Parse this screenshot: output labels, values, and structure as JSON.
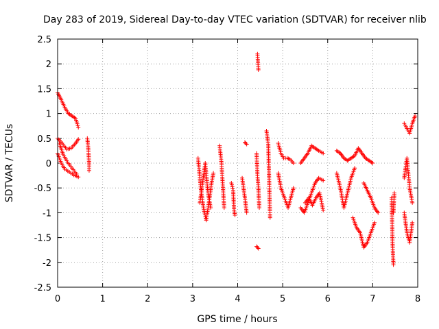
{
  "chart_data": {
    "type": "scatter",
    "title": "Day 283 of 2019, Sidereal Day-to-day VTEC variation (SDTVAR) for receiver nlib",
    "xlabel": "GPS time / hours",
    "ylabel": "SDTVAR / TECUs",
    "xlim": [
      0,
      8
    ],
    "ylim": [
      -2.5,
      2.5
    ],
    "grid": true,
    "marker": "plus",
    "marker_color": "#ff0000",
    "x_ticks": [
      0,
      1,
      2,
      3,
      4,
      5,
      6,
      7,
      8
    ],
    "x_tick_labels": [
      "0",
      "1",
      "2",
      "3",
      "4",
      "5",
      "6",
      "7",
      "8"
    ],
    "y_ticks": [
      -2.5,
      -2,
      -1.5,
      -1,
      -0.5,
      0,
      0.5,
      1,
      1.5,
      2,
      2.5
    ],
    "y_tick_labels": [
      "-2.5",
      "-2",
      "-1.5",
      "-1",
      "-0.5",
      "0",
      "0.5",
      "1",
      "1.5",
      "2",
      "2.5"
    ],
    "series": [
      {
        "name": "SDTVAR",
        "segments": [
          {
            "x": [
              0.0,
              0.08,
              0.16,
              0.24,
              0.32,
              0.4,
              0.46
            ],
            "y": [
              1.42,
              1.28,
              1.12,
              1.0,
              0.95,
              0.9,
              0.72
            ]
          },
          {
            "x": [
              0.0,
              0.1,
              0.2,
              0.3,
              0.4,
              0.46
            ],
            "y": [
              0.5,
              0.4,
              0.28,
              0.3,
              0.4,
              0.48
            ]
          },
          {
            "x": [
              0.0,
              0.08,
              0.16,
              0.26,
              0.36,
              0.46
            ],
            "y": [
              0.2,
              0.0,
              -0.12,
              -0.18,
              -0.24,
              -0.28
            ]
          },
          {
            "x": [
              0.04,
              0.12,
              0.22,
              0.32,
              0.42
            ],
            "y": [
              0.4,
              0.18,
              0.02,
              -0.1,
              -0.22
            ]
          },
          {
            "x": [
              0.66,
              0.68,
              0.7,
              0.7
            ],
            "y": [
              0.5,
              0.3,
              0.0,
              -0.15
            ]
          },
          {
            "x": [
              3.12,
              3.18,
              3.24,
              3.3,
              3.36,
              3.42,
              3.46
            ],
            "y": [
              0.1,
              -0.5,
              -0.9,
              -1.15,
              -0.8,
              -0.4,
              -0.2
            ]
          },
          {
            "x": [
              3.16,
              3.22,
              3.28,
              3.34,
              3.4
            ],
            "y": [
              -0.8,
              -0.4,
              0.0,
              -0.6,
              -0.9
            ]
          },
          {
            "x": [
              3.6,
              3.64,
              3.68,
              3.7
            ],
            "y": [
              0.35,
              0.0,
              -0.6,
              -0.9
            ]
          },
          {
            "x": [
              3.86,
              3.9,
              3.92,
              3.94
            ],
            "y": [
              -0.4,
              -0.55,
              -0.95,
              -1.05
            ]
          },
          {
            "x": [
              4.16,
              4.2
            ],
            "y": [
              0.42,
              0.38
            ]
          },
          {
            "x": [
              4.1,
              4.16,
              4.2
            ],
            "y": [
              -0.3,
              -0.7,
              -1.0
            ]
          },
          {
            "x": [
              4.42,
              4.44,
              4.46,
              4.48
            ],
            "y": [
              0.2,
              -0.25,
              -0.5,
              -0.9
            ]
          },
          {
            "x": [
              4.44,
              4.46
            ],
            "y": [
              2.2,
              1.88
            ]
          },
          {
            "x": [
              4.42,
              4.46
            ],
            "y": [
              -1.68,
              -1.72
            ]
          },
          {
            "x": [
              4.64,
              4.68,
              4.7,
              4.72
            ],
            "y": [
              0.65,
              0.38,
              -0.4,
              -1.1
            ]
          },
          {
            "x": [
              4.9,
              4.96,
              5.02,
              5.1,
              5.16,
              5.24
            ],
            "y": [
              0.4,
              0.2,
              0.1,
              0.1,
              0.08,
              0.0
            ]
          },
          {
            "x": [
              4.9,
              4.96,
              5.04,
              5.12,
              5.18,
              5.24
            ],
            "y": [
              -0.2,
              -0.5,
              -0.7,
              -0.9,
              -0.7,
              -0.5
            ]
          },
          {
            "x": [
              5.4,
              5.48,
              5.56,
              5.64,
              5.72,
              5.8,
              5.9
            ],
            "y": [
              0.0,
              0.1,
              0.2,
              0.35,
              0.3,
              0.25,
              0.2
            ]
          },
          {
            "x": [
              5.4,
              5.48,
              5.56,
              5.64,
              5.72,
              5.8,
              5.9
            ],
            "y": [
              -0.9,
              -1.0,
              -0.8,
              -0.6,
              -0.4,
              -0.3,
              -0.35
            ]
          },
          {
            "x": [
              5.5,
              5.58,
              5.66,
              5.74,
              5.82,
              5.9
            ],
            "y": [
              -0.8,
              -0.7,
              -0.85,
              -0.7,
              -0.6,
              -0.95
            ]
          },
          {
            "x": [
              6.2,
              6.28,
              6.36,
              6.44,
              6.52,
              6.6,
              6.68,
              6.76,
              6.84,
              6.92,
              7.0
            ],
            "y": [
              0.25,
              0.2,
              0.1,
              0.05,
              0.1,
              0.15,
              0.3,
              0.2,
              0.1,
              0.05,
              0.0
            ]
          },
          {
            "x": [
              6.2,
              6.28,
              6.36,
              6.44,
              6.52,
              6.6
            ],
            "y": [
              -0.2,
              -0.5,
              -0.9,
              -0.6,
              -0.3,
              -0.1
            ]
          },
          {
            "x": [
              6.56,
              6.64,
              6.72,
              6.8,
              6.88,
              6.96,
              7.04
            ],
            "y": [
              -1.1,
              -1.3,
              -1.4,
              -1.7,
              -1.6,
              -1.4,
              -1.2
            ]
          },
          {
            "x": [
              6.8,
              6.88,
              6.96,
              7.04,
              7.12
            ],
            "y": [
              -0.4,
              -0.55,
              -0.7,
              -0.9,
              -1.0
            ]
          },
          {
            "x": [
              7.42,
              7.44,
              7.46
            ],
            "y": [
              -0.7,
              -1.6,
              -2.05
            ]
          },
          {
            "x": [
              7.46,
              7.48
            ],
            "y": [
              -1.0,
              -0.6
            ]
          },
          {
            "x": [
              7.7,
              7.76,
              7.82,
              7.88,
              7.94
            ],
            "y": [
              0.8,
              0.7,
              0.6,
              0.8,
              0.95
            ]
          },
          {
            "x": [
              7.7,
              7.76,
              7.82,
              7.88
            ],
            "y": [
              -0.3,
              0.1,
              -0.5,
              -0.8
            ]
          },
          {
            "x": [
              7.7,
              7.76,
              7.82,
              7.88
            ],
            "y": [
              -1.0,
              -1.4,
              -1.6,
              -1.2
            ]
          }
        ]
      }
    ]
  }
}
